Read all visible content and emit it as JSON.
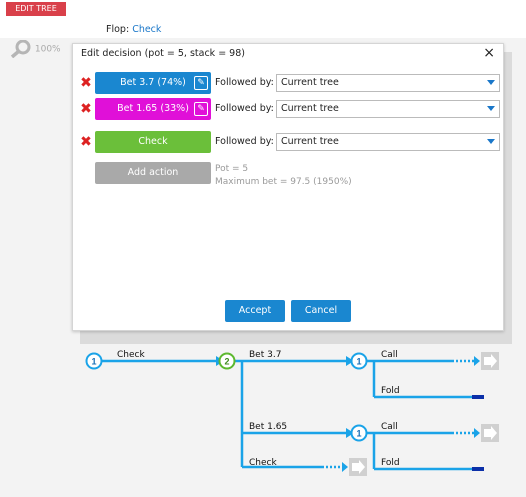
{
  "toolbar": {
    "edit_tree_label": "EDIT TREE"
  },
  "header": {
    "flop_label": "Flop:",
    "flop_value": "Check"
  },
  "canvas": {
    "zoom_label": "100%",
    "colors": {
      "line": "#1aa3e8",
      "node_green": "#5cb82e"
    }
  },
  "dialog": {
    "title": "Edit decision (pot = 5, stack = 98)",
    "close_label": "×",
    "followed_label": "Followed by:",
    "actions": [
      {
        "label": "Bet 3.7 (74%)",
        "followed": "Current tree",
        "color": "#1a87d0"
      },
      {
        "label": "Bet 1.65 (33%)",
        "followed": "Current tree",
        "color": "#e010d8"
      },
      {
        "label": "Check",
        "followed": "Current tree",
        "color": "#6bbf3a"
      }
    ],
    "add_action_label": "Add action",
    "pot_info": "Pot = 5",
    "max_bet_info": "Maximum bet = 97.5 (1950%)",
    "accept_label": "Accept",
    "cancel_label": "Cancel"
  },
  "tree": {
    "nodes": [
      "1",
      "2",
      "1",
      "1"
    ],
    "edges": [
      "Check",
      "Bet 3.7",
      "Bet 1.65",
      "Check",
      "Call",
      "Fold",
      "Call",
      "Fold"
    ]
  }
}
